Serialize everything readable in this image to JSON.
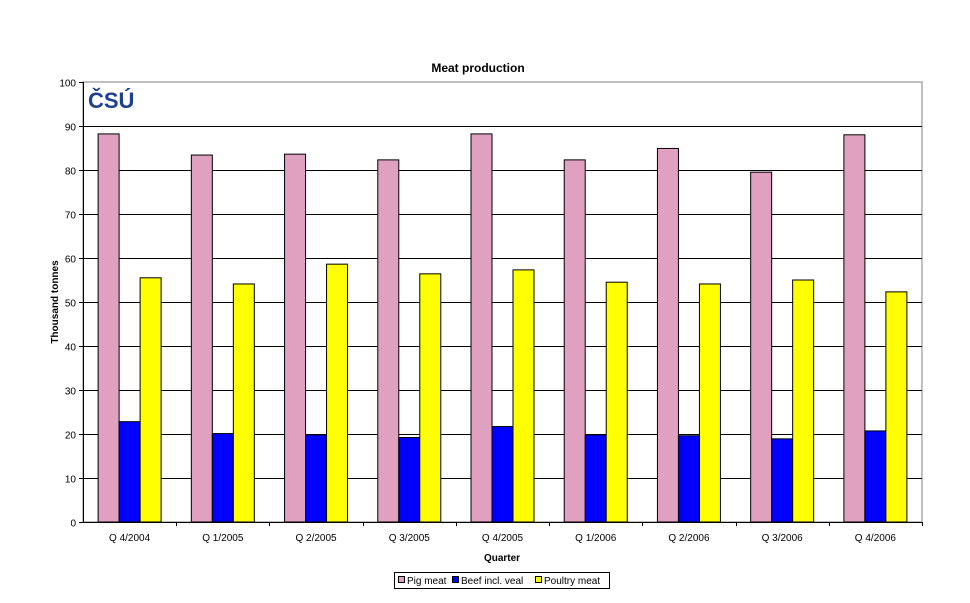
{
  "chart_data": {
    "type": "bar",
    "title": "Meat production",
    "xlabel": "Quarter",
    "ylabel": "Thousand tonnes",
    "ylim": [
      0,
      100
    ],
    "yticks": [
      0,
      10,
      20,
      30,
      40,
      50,
      60,
      70,
      80,
      90,
      100
    ],
    "grid": true,
    "legend_position": "bottom",
    "categories": [
      "Q 4/2004",
      "Q 1/2005",
      "Q 2/2005",
      "Q 3/2005",
      "Q 4/2005",
      "Q 1/2006",
      "Q 2/2006",
      "Q 3/2006",
      "Q 4/2006"
    ],
    "series": [
      {
        "name": "Pig meat",
        "color": "#E0A0C0",
        "values": [
          88.2,
          83.4,
          83.6,
          82.3,
          88.2,
          82.3,
          84.9,
          79.5,
          88.0
        ]
      },
      {
        "name": "Beef incl. veal",
        "color": "#0000FF",
        "values": [
          22.8,
          20.1,
          19.8,
          19.2,
          21.7,
          19.8,
          19.6,
          18.9,
          20.7
        ]
      },
      {
        "name": "Poultry meat",
        "color": "#FFFF00",
        "values": [
          55.5,
          54.1,
          58.6,
          56.4,
          57.3,
          54.5,
          54.1,
          55.0,
          52.3
        ]
      }
    ]
  },
  "logo": {
    "text": "ČSÚ",
    "color": "#1F3F8F"
  }
}
